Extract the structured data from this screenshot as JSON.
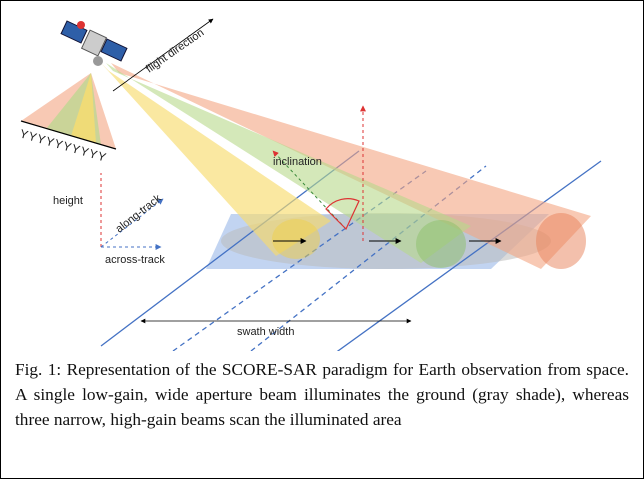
{
  "diagram": {
    "labels": {
      "flight_direction": "flight direction",
      "inclination": "inclination",
      "height": "height",
      "along_track": "along-track",
      "across_track": "across-track",
      "swath_width": "swath width"
    },
    "caption": "Fig. 1: Representation of the SCORE-SAR paradigm for Earth observation from space. A single low-gain, wide aperture beam illuminates the ground (gray shade), whereas three narrow, high-gain beams scan the illuminated area"
  }
}
